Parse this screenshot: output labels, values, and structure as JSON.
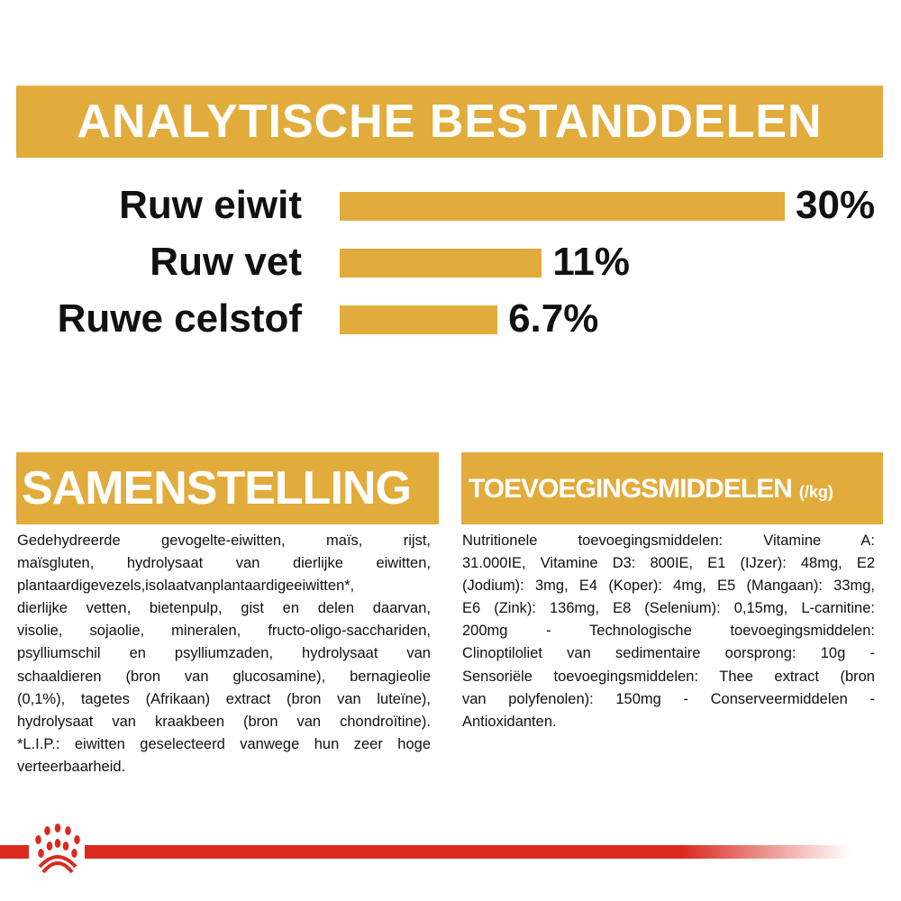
{
  "header": {
    "title": "ANALYTISCHE BESTANDDELEN"
  },
  "chart_data": {
    "type": "bar",
    "orientation": "horizontal",
    "categories": [
      "Ruw eiwit",
      "Ruw vet",
      "Ruwe celstof"
    ],
    "values": [
      30,
      11,
      6.7
    ],
    "data_labels": [
      "30%",
      "11%",
      "6.7%"
    ],
    "unit": "%",
    "bar_color": "#E2AC3C",
    "grid": false
  },
  "samenstelling": {
    "title": "SAMENSTELLING",
    "lines": [
      "Gedehydreerde gevogelte-eiwitten, maïs, rijst,",
      "maïsgluten, hydrolysaat van dierlijke eiwitten,",
      "plantaardigevezels,isolaatvanplantaardigeeiwitten*,",
      "dierlijke vetten, bietenpulp, gist en delen daarvan,",
      "visolie, sojaolie, mineralen, fructo-oligo-sacchariden,",
      "psylliumschil en psylliumzaden, hydrolysaat van",
      "schaaldieren (bron van glucosamine), bernagieolie",
      "(0,1%), tagetes (Afrikaan) extract (bron van luteïne),",
      "hydrolysaat van kraakbeen (bron van chondroïtine).",
      " *L.I.P.: eiwitten geselecteerd vanwege hun zeer hoge",
      "verteerbaarheid."
    ]
  },
  "toevoegingsmiddelen": {
    "title": "TOEVOEGINGSMIDDELEN",
    "unit": "(/kg)",
    "lines": [
      "Nutritionele toevoegingsmiddelen: Vitamine A:",
      "31.000IE, Vitamine D3: 800IE, E1 (IJzer): 48mg, E2",
      "(Jodium): 3mg, E4 (Koper): 4mg, E5 (Mangaan): 33mg,",
      "E6 (Zink): 136mg, E8 (Selenium): 0,15mg, L-carnitine:",
      "200mg - Technologische toevoegingsmiddelen:",
      "Clinoptiloliet van sedimentaire oorsprong: 10g -",
      "Sensoriële toevoegingsmiddelen: Thee extract (bron",
      "van polyfenolen): 150mg - Conserveermiddelen -",
      "Antioxidanten."
    ]
  },
  "footer": {
    "logo": "paw-crown-logo",
    "brand_color": "#DA2A20"
  }
}
